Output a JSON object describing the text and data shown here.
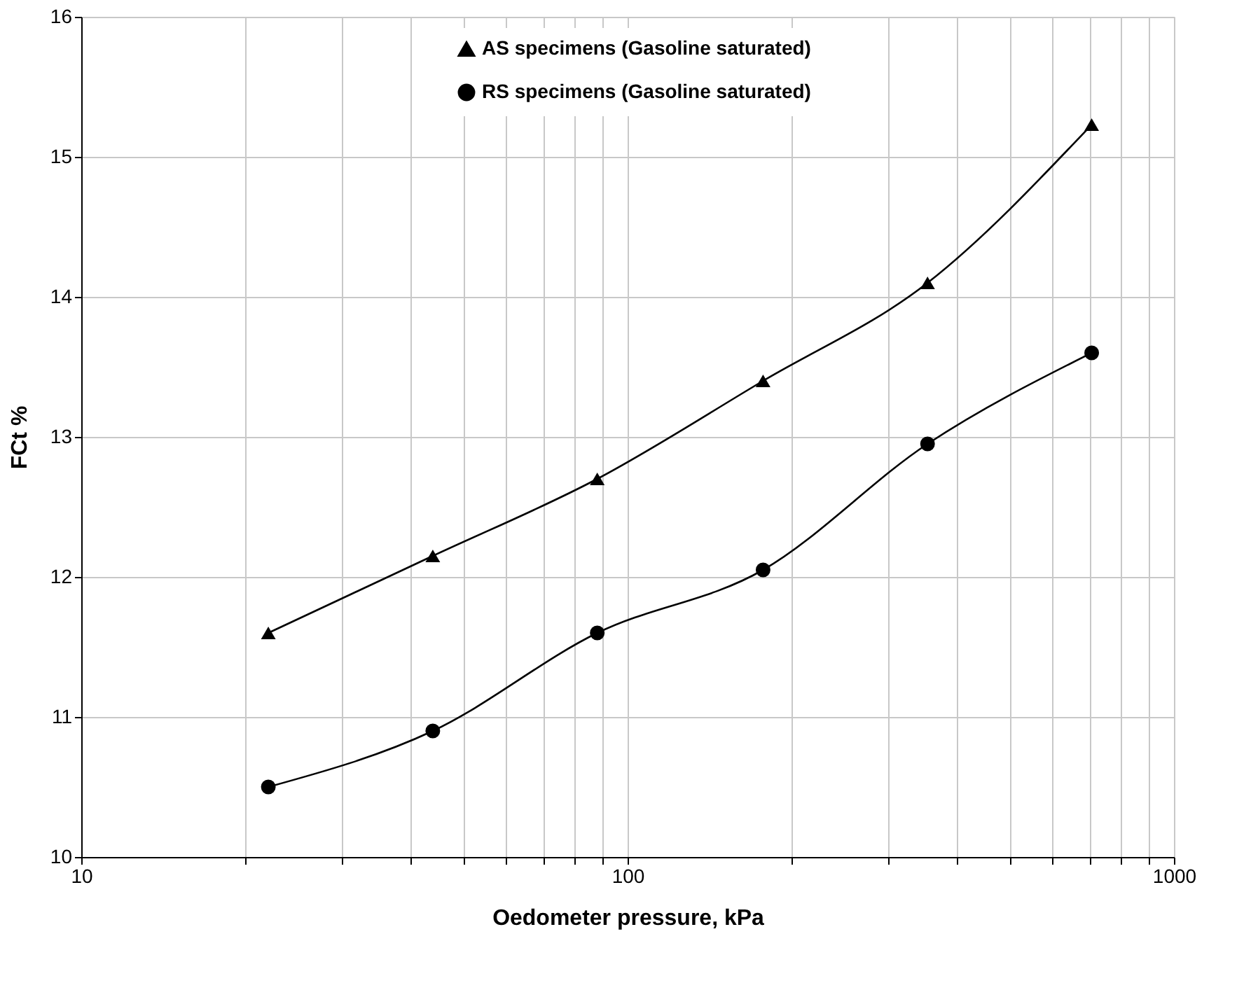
{
  "chart_data": {
    "type": "line",
    "xlabel": "Oedometer pressure, kPa",
    "ylabel": "FCt %",
    "log": "x",
    "grid": true,
    "legend": "top",
    "line_style": "solid",
    "x": [
      22,
      44,
      88,
      177,
      354,
      707
    ],
    "series": [
      {
        "name": "AS specimens (Gasoline saturated)",
        "color": "#000000",
        "marker": "triangle",
        "values": [
          11.6,
          12.15,
          12.7,
          13.4,
          14.1,
          15.23
        ]
      },
      {
        "name": "RS specimens (Gasoline saturated)",
        "color": "#000000",
        "marker": "circle",
        "values": [
          10.5,
          10.9,
          11.6,
          12.05,
          12.95,
          13.6
        ]
      }
    ],
    "xlim": [
      10,
      1000
    ],
    "xticks": [
      10,
      {
        "value": 20,
        "label": null
      },
      {
        "value": 30,
        "label": null
      },
      {
        "value": 40,
        "label": null
      },
      {
        "value": 50,
        "label": null
      },
      {
        "value": 60,
        "label": null
      },
      {
        "value": 70,
        "label": null
      },
      {
        "value": 80,
        "label": null
      },
      {
        "value": 90,
        "label": null
      },
      100,
      {
        "value": 200,
        "label": null
      },
      {
        "value": 300,
        "label": null
      },
      {
        "value": 400,
        "label": null
      },
      {
        "value": 500,
        "label": null
      },
      {
        "value": 600,
        "label": null
      },
      {
        "value": 700,
        "label": null
      },
      {
        "value": 800,
        "label": null
      },
      {
        "value": 900,
        "label": null
      },
      1000
    ],
    "ylim": [
      10,
      16
    ],
    "yticks": [
      10,
      11,
      12,
      13,
      14,
      15,
      16
    ]
  }
}
